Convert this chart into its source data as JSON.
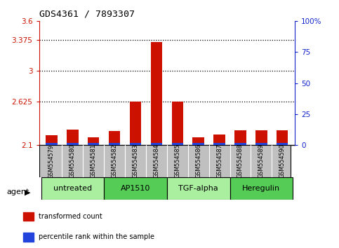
{
  "title": "GDS4361 / 7893307",
  "samples": [
    "GSM554579",
    "GSM554580",
    "GSM554581",
    "GSM554582",
    "GSM554583",
    "GSM554584",
    "GSM554585",
    "GSM554586",
    "GSM554587",
    "GSM554588",
    "GSM554589",
    "GSM554590"
  ],
  "red_values": [
    2.22,
    2.285,
    2.195,
    2.27,
    2.625,
    3.35,
    2.625,
    2.195,
    2.225,
    2.275,
    2.275,
    2.275
  ],
  "blue_heights": [
    0.022,
    0.022,
    0.022,
    0.022,
    0.022,
    0.03,
    0.028,
    0.022,
    0.022,
    0.022,
    0.022,
    0.022
  ],
  "baseline": 2.1,
  "ylim_left": [
    2.1,
    3.6
  ],
  "ylim_right": [
    0,
    100
  ],
  "yticks_left": [
    2.1,
    2.625,
    3.0,
    3.375,
    3.6
  ],
  "yticks_right": [
    0,
    25,
    50,
    75,
    100
  ],
  "ytick_labels_left": [
    "2.1",
    "2.625",
    "3",
    "3.375",
    "3.6"
  ],
  "ytick_labels_right": [
    "0",
    "25",
    "50",
    "75",
    "100%"
  ],
  "groups": [
    {
      "label": "untreated",
      "start": 0,
      "end": 3,
      "color": "#aaeea0"
    },
    {
      "label": "AP1510",
      "start": 3,
      "end": 6,
      "color": "#55cc55"
    },
    {
      "label": "TGF-alpha",
      "start": 6,
      "end": 9,
      "color": "#aaeea0"
    },
    {
      "label": "Heregulin",
      "start": 9,
      "end": 12,
      "color": "#55cc55"
    }
  ],
  "bar_width": 0.55,
  "bar_color_red": "#cc1100",
  "bar_color_blue": "#2244dd",
  "dotted_lines": [
    2.625,
    3.0,
    3.375
  ],
  "legend_items": [
    {
      "color": "#cc1100",
      "label": "transformed count"
    },
    {
      "color": "#2244dd",
      "label": "percentile rank within the sample"
    }
  ],
  "agent_label": "agent",
  "left_tick_color": "#cc1100",
  "right_tick_color": "#1122cc",
  "bg_sample_row": "#c0c0c0",
  "plot_bg": "#ffffff"
}
